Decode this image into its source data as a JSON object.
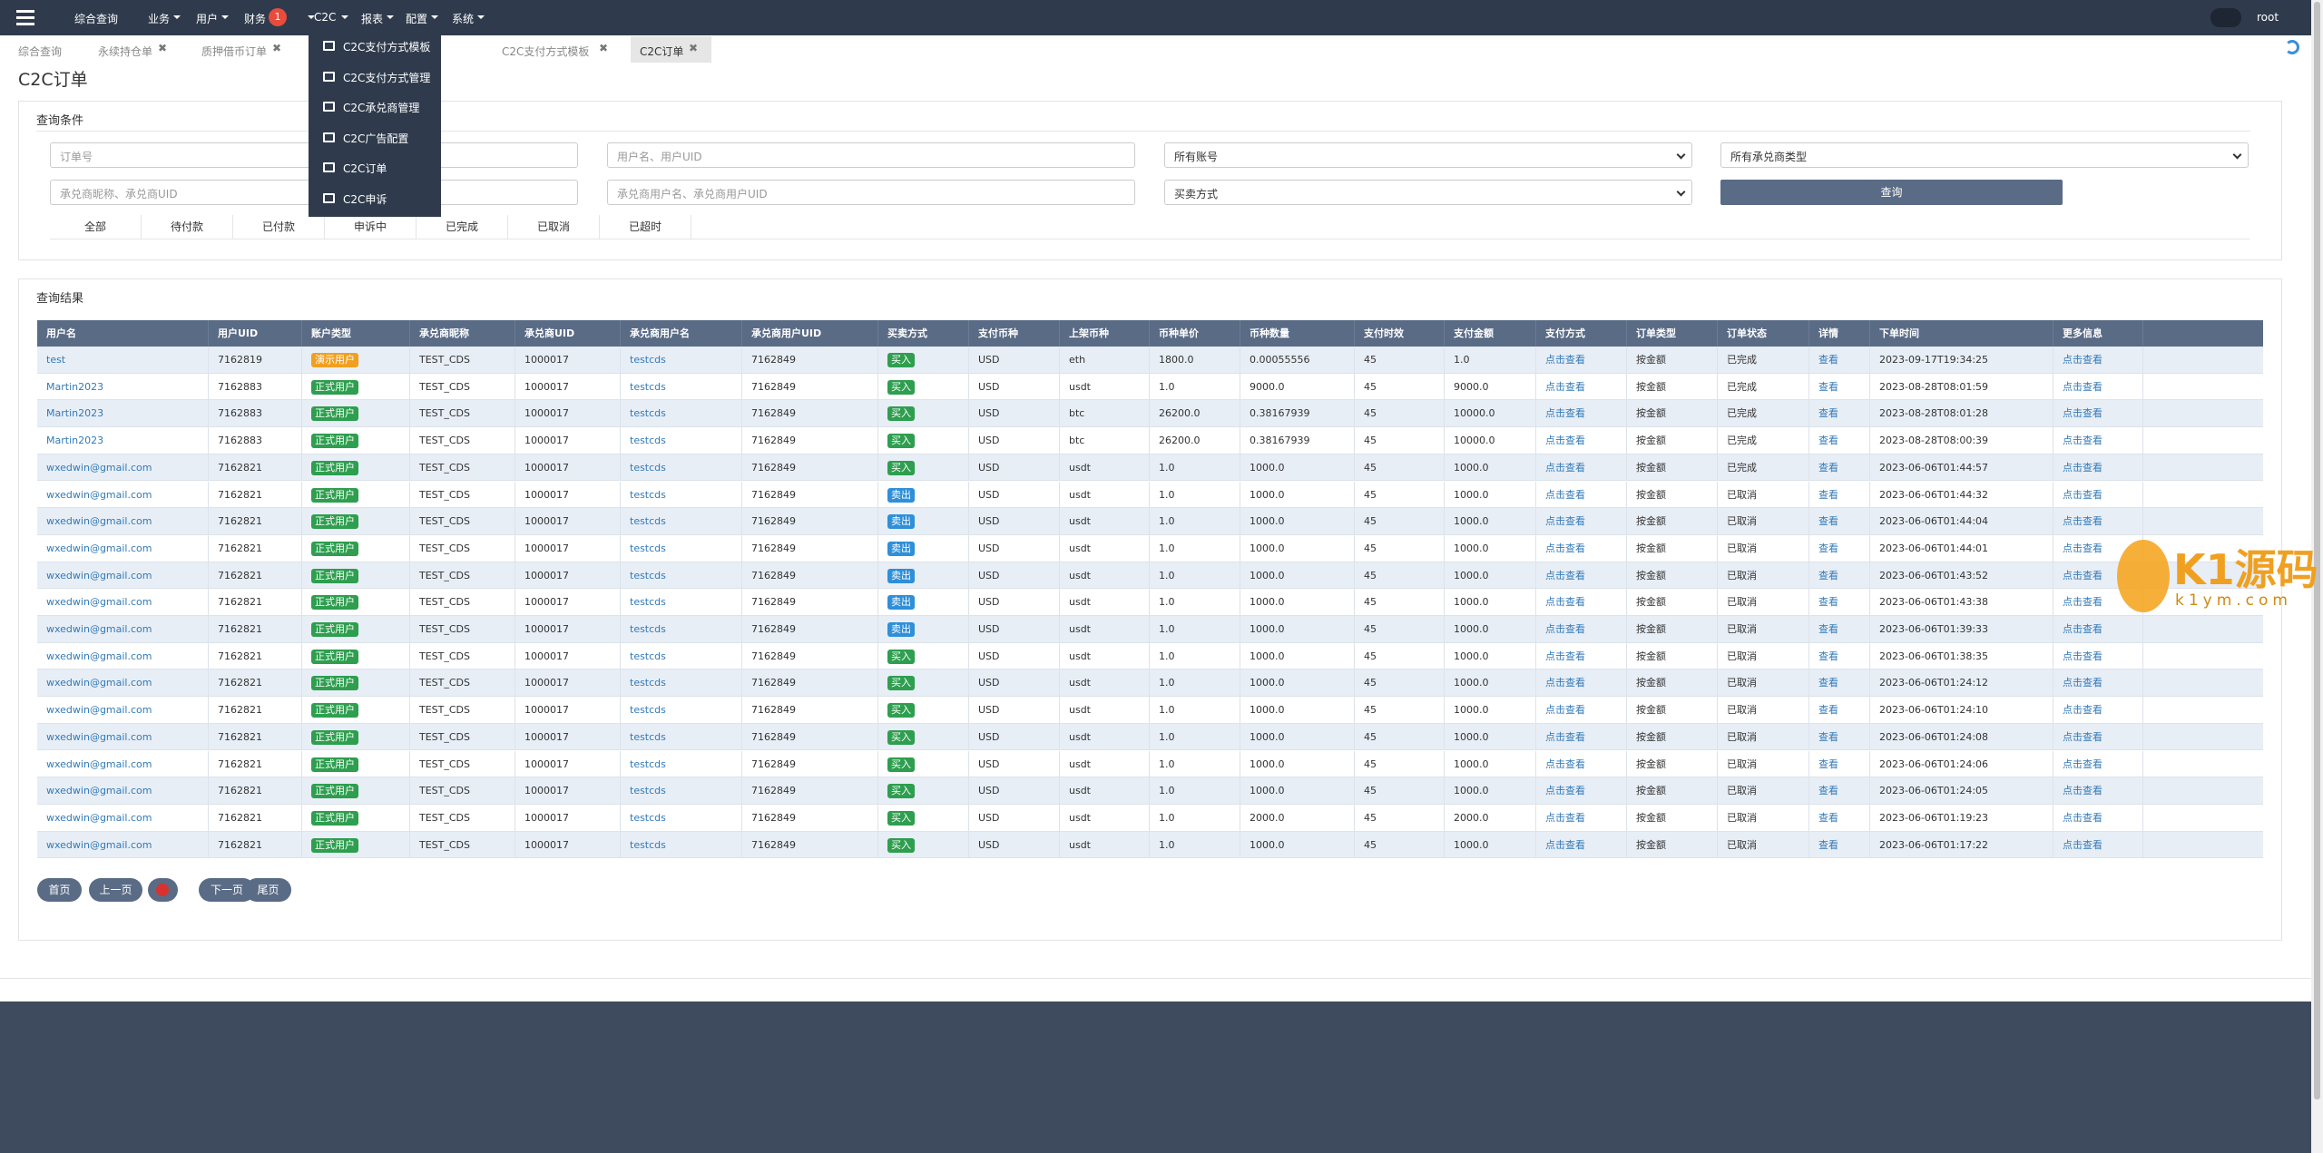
{
  "navbar": {
    "menu": [
      "综合查询",
      "业务",
      "用户",
      "财务",
      "C2C",
      "报表",
      "配置",
      "系统"
    ],
    "badge": "1",
    "user": "root"
  },
  "dropdown": [
    "C2C支付方式模板",
    "C2C支付方式管理",
    "C2C承兑商管理",
    "C2C广告配置",
    "C2C订单",
    "C2C申诉"
  ],
  "tabs": [
    "综合查询",
    "永续持仓单",
    "质押借币订单",
    "C2C支付方式模板",
    "C2C订单"
  ],
  "page_title": "C2C订单",
  "query": {
    "title": "查询条件",
    "fields": [
      "订单号",
      "用户名、用户UID",
      "所有账号",
      "所有承兑商类型",
      "承兑商昵称、承兑商UID",
      "承兑商用户名、承兑商用户UID",
      "买卖方式"
    ],
    "button": "查询",
    "status_tabs": [
      "全部",
      "待付款",
      "已付款",
      "申诉中",
      "已完成",
      "已取消",
      "已超时"
    ]
  },
  "results": {
    "title": "查询结果",
    "columns": [
      "用户名",
      "用户UID",
      "账户类型",
      "承兑商昵称",
      "承兑商UID",
      "承兑商用户名",
      "承兑商用户UID",
      "买卖方式",
      "支付币种",
      "上架币种",
      "币种单价",
      "币种数量",
      "支付时效",
      "支付金额",
      "支付方式",
      "订单类型",
      "订单状态",
      "详情",
      "下单时间",
      "更多信息"
    ],
    "rows": [
      [
        "test",
        "7162819",
        "演示用户",
        "TEST_CDS",
        "1000017",
        "testcds",
        "7162849",
        "买入",
        "USD",
        "eth",
        "1800.0",
        "0.00055556",
        "45",
        "1.0",
        "点击查看",
        "按金额",
        "已完成",
        "查看",
        "2023-09-17T19:34:25",
        "点击查看"
      ],
      [
        "Martin2023",
        "7162883",
        "正式用户",
        "TEST_CDS",
        "1000017",
        "testcds",
        "7162849",
        "买入",
        "USD",
        "usdt",
        "1.0",
        "9000.0",
        "45",
        "9000.0",
        "点击查看",
        "按金额",
        "已完成",
        "查看",
        "2023-08-28T08:01:59",
        "点击查看"
      ],
      [
        "Martin2023",
        "7162883",
        "正式用户",
        "TEST_CDS",
        "1000017",
        "testcds",
        "7162849",
        "买入",
        "USD",
        "btc",
        "26200.0",
        "0.38167939",
        "45",
        "10000.0",
        "点击查看",
        "按金额",
        "已完成",
        "查看",
        "2023-08-28T08:01:28",
        "点击查看"
      ],
      [
        "Martin2023",
        "7162883",
        "正式用户",
        "TEST_CDS",
        "1000017",
        "testcds",
        "7162849",
        "买入",
        "USD",
        "btc",
        "26200.0",
        "0.38167939",
        "45",
        "10000.0",
        "点击查看",
        "按金额",
        "已完成",
        "查看",
        "2023-08-28T08:00:39",
        "点击查看"
      ],
      [
        "wxedwin@gmail.com",
        "7162821",
        "正式用户",
        "TEST_CDS",
        "1000017",
        "testcds",
        "7162849",
        "买入",
        "USD",
        "usdt",
        "1.0",
        "1000.0",
        "45",
        "1000.0",
        "点击查看",
        "按金额",
        "已完成",
        "查看",
        "2023-06-06T01:44:57",
        "点击查看"
      ],
      [
        "wxedwin@gmail.com",
        "7162821",
        "正式用户",
        "TEST_CDS",
        "1000017",
        "testcds",
        "7162849",
        "卖出",
        "USD",
        "usdt",
        "1.0",
        "1000.0",
        "45",
        "1000.0",
        "点击查看",
        "按金额",
        "已取消",
        "查看",
        "2023-06-06T01:44:32",
        "点击查看"
      ],
      [
        "wxedwin@gmail.com",
        "7162821",
        "正式用户",
        "TEST_CDS",
        "1000017",
        "testcds",
        "7162849",
        "卖出",
        "USD",
        "usdt",
        "1.0",
        "1000.0",
        "45",
        "1000.0",
        "点击查看",
        "按金额",
        "已取消",
        "查看",
        "2023-06-06T01:44:04",
        "点击查看"
      ],
      [
        "wxedwin@gmail.com",
        "7162821",
        "正式用户",
        "TEST_CDS",
        "1000017",
        "testcds",
        "7162849",
        "卖出",
        "USD",
        "usdt",
        "1.0",
        "1000.0",
        "45",
        "1000.0",
        "点击查看",
        "按金额",
        "已取消",
        "查看",
        "2023-06-06T01:44:01",
        "点击查看"
      ],
      [
        "wxedwin@gmail.com",
        "7162821",
        "正式用户",
        "TEST_CDS",
        "1000017",
        "testcds",
        "7162849",
        "卖出",
        "USD",
        "usdt",
        "1.0",
        "1000.0",
        "45",
        "1000.0",
        "点击查看",
        "按金额",
        "已取消",
        "查看",
        "2023-06-06T01:43:52",
        "点击查看"
      ],
      [
        "wxedwin@gmail.com",
        "7162821",
        "正式用户",
        "TEST_CDS",
        "1000017",
        "testcds",
        "7162849",
        "卖出",
        "USD",
        "usdt",
        "1.0",
        "1000.0",
        "45",
        "1000.0",
        "点击查看",
        "按金额",
        "已取消",
        "查看",
        "2023-06-06T01:43:38",
        "点击查看"
      ],
      [
        "wxedwin@gmail.com",
        "7162821",
        "正式用户",
        "TEST_CDS",
        "1000017",
        "testcds",
        "7162849",
        "卖出",
        "USD",
        "usdt",
        "1.0",
        "1000.0",
        "45",
        "1000.0",
        "点击查看",
        "按金额",
        "已取消",
        "查看",
        "2023-06-06T01:39:33",
        "点击查看"
      ],
      [
        "wxedwin@gmail.com",
        "7162821",
        "正式用户",
        "TEST_CDS",
        "1000017",
        "testcds",
        "7162849",
        "买入",
        "USD",
        "usdt",
        "1.0",
        "1000.0",
        "45",
        "1000.0",
        "点击查看",
        "按金额",
        "已取消",
        "查看",
        "2023-06-06T01:38:35",
        "点击查看"
      ],
      [
        "wxedwin@gmail.com",
        "7162821",
        "正式用户",
        "TEST_CDS",
        "1000017",
        "testcds",
        "7162849",
        "买入",
        "USD",
        "usdt",
        "1.0",
        "1000.0",
        "45",
        "1000.0",
        "点击查看",
        "按金额",
        "已取消",
        "查看",
        "2023-06-06T01:24:12",
        "点击查看"
      ],
      [
        "wxedwin@gmail.com",
        "7162821",
        "正式用户",
        "TEST_CDS",
        "1000017",
        "testcds",
        "7162849",
        "买入",
        "USD",
        "usdt",
        "1.0",
        "1000.0",
        "45",
        "1000.0",
        "点击查看",
        "按金额",
        "已取消",
        "查看",
        "2023-06-06T01:24:10",
        "点击查看"
      ],
      [
        "wxedwin@gmail.com",
        "7162821",
        "正式用户",
        "TEST_CDS",
        "1000017",
        "testcds",
        "7162849",
        "买入",
        "USD",
        "usdt",
        "1.0",
        "1000.0",
        "45",
        "1000.0",
        "点击查看",
        "按金额",
        "已取消",
        "查看",
        "2023-06-06T01:24:08",
        "点击查看"
      ],
      [
        "wxedwin@gmail.com",
        "7162821",
        "正式用户",
        "TEST_CDS",
        "1000017",
        "testcds",
        "7162849",
        "买入",
        "USD",
        "usdt",
        "1.0",
        "1000.0",
        "45",
        "1000.0",
        "点击查看",
        "按金额",
        "已取消",
        "查看",
        "2023-06-06T01:24:06",
        "点击查看"
      ],
      [
        "wxedwin@gmail.com",
        "7162821",
        "正式用户",
        "TEST_CDS",
        "1000017",
        "testcds",
        "7162849",
        "买入",
        "USD",
        "usdt",
        "1.0",
        "1000.0",
        "45",
        "1000.0",
        "点击查看",
        "按金额",
        "已取消",
        "查看",
        "2023-06-06T01:24:05",
        "点击查看"
      ],
      [
        "wxedwin@gmail.com",
        "7162821",
        "正式用户",
        "TEST_CDS",
        "1000017",
        "testcds",
        "7162849",
        "买入",
        "USD",
        "usdt",
        "1.0",
        "2000.0",
        "45",
        "2000.0",
        "点击查看",
        "按金额",
        "已取消",
        "查看",
        "2023-06-06T01:19:23",
        "点击查看"
      ],
      [
        "wxedwin@gmail.com",
        "7162821",
        "正式用户",
        "TEST_CDS",
        "1000017",
        "testcds",
        "7162849",
        "买入",
        "USD",
        "usdt",
        "1.0",
        "1000.0",
        "45",
        "1000.0",
        "点击查看",
        "按金额",
        "已取消",
        "查看",
        "2023-06-06T01:17:22",
        "点击查看"
      ]
    ]
  },
  "pagination": [
    "首页",
    "上一页",
    "下一页",
    "尾页"
  ],
  "watermark": [
    "K1源码",
    "k1ym.com"
  ]
}
